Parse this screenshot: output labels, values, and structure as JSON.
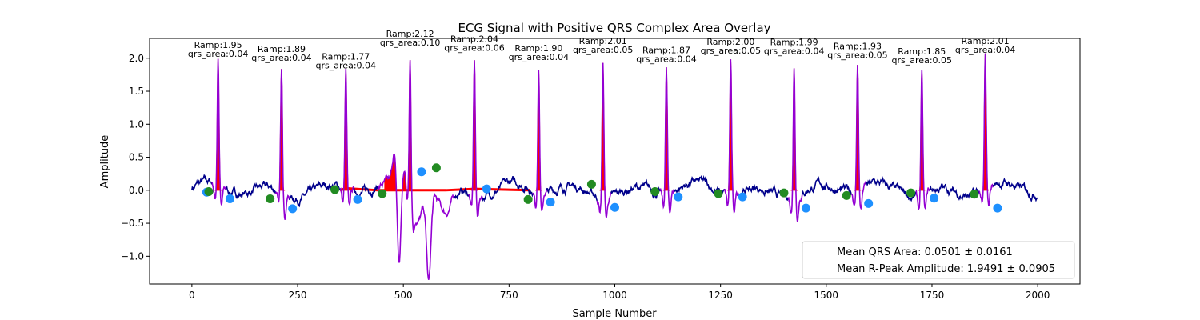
{
  "chart_data": {
    "type": "line",
    "title": "ECG Signal with Positive QRS Complex Area Overlay",
    "xlabel": "Sample Number",
    "ylabel": "Amplitude",
    "xlim": [
      -100,
      2100
    ],
    "ylim": [
      -1.42,
      2.3
    ],
    "x_ticks": [
      0,
      250,
      500,
      750,
      1000,
      1250,
      1500,
      1750,
      2000
    ],
    "y_ticks": [
      -1.0,
      -0.5,
      0.0,
      0.5,
      1.0,
      1.5,
      2.0
    ],
    "grid": false,
    "colors": {
      "signal": "#00008b",
      "qrs_segment": "#9400d3",
      "qrs_area": "#ff0000",
      "q_s_points": "#1e90ff",
      "t_points": "#228b22"
    },
    "r_peaks": [
      {
        "x": 62,
        "amp": 1.95,
        "qrs_area": 0.04
      },
      {
        "x": 212,
        "amp": 1.89,
        "qrs_area": 0.04
      },
      {
        "x": 364,
        "amp": 1.77,
        "qrs_area": 0.04
      },
      {
        "x": 516,
        "amp": 2.12,
        "qrs_area": 0.1
      },
      {
        "x": 668,
        "amp": 2.04,
        "qrs_area": 0.06
      },
      {
        "x": 820,
        "amp": 1.9,
        "qrs_area": 0.04
      },
      {
        "x": 972,
        "amp": 2.01,
        "qrs_area": 0.05
      },
      {
        "x": 1122,
        "amp": 1.87,
        "qrs_area": 0.04
      },
      {
        "x": 1274,
        "amp": 2.0,
        "qrs_area": 0.05
      },
      {
        "x": 1424,
        "amp": 1.99,
        "qrs_area": 0.04
      },
      {
        "x": 1574,
        "amp": 1.93,
        "qrs_area": 0.05
      },
      {
        "x": 1726,
        "amp": 1.85,
        "qrs_area": 0.05
      },
      {
        "x": 1876,
        "amp": 2.01,
        "qrs_area": 0.04
      }
    ],
    "annotations": [
      {
        "ramp": "Ramp:1.95",
        "area": "qrs_area:0.04"
      },
      {
        "ramp": "Ramp:1.89",
        "area": "qrs_area:0.04"
      },
      {
        "ramp": "Ramp:1.77",
        "area": "qrs_area:0.04"
      },
      {
        "ramp": "Ramp:2.12",
        "area": "qrs_area:0.10"
      },
      {
        "ramp": "Ramp:2.04",
        "area": "qrs_area:0.06"
      },
      {
        "ramp": "Ramp:1.90",
        "area": "qrs_area:0.04"
      },
      {
        "ramp": "Ramp:2.01",
        "area": "qrs_area:0.05"
      },
      {
        "ramp": "Ramp:1.87",
        "area": "qrs_area:0.04"
      },
      {
        "ramp": "Ramp:2.00",
        "area": "qrs_area:0.05"
      },
      {
        "ramp": "Ramp:1.99",
        "area": "qrs_area:0.04"
      },
      {
        "ramp": "Ramp:1.93",
        "area": "qrs_area:0.05"
      },
      {
        "ramp": "Ramp:1.85",
        "area": "qrs_area:0.05"
      },
      {
        "ramp": "Ramp:2.01",
        "area": "qrs_area:0.04"
      }
    ],
    "q_s_points": [
      {
        "x": 35,
        "y": -0.03
      },
      {
        "x": 90,
        "y": -0.13
      },
      {
        "x": 238,
        "y": -0.28
      },
      {
        "x": 392,
        "y": -0.14
      },
      {
        "x": 543,
        "y": 0.28
      },
      {
        "x": 697,
        "y": 0.02
      },
      {
        "x": 848,
        "y": -0.18
      },
      {
        "x": 1000,
        "y": -0.26
      },
      {
        "x": 1150,
        "y": -0.1
      },
      {
        "x": 1302,
        "y": -0.1
      },
      {
        "x": 1452,
        "y": -0.27
      },
      {
        "x": 1600,
        "y": -0.2
      },
      {
        "x": 1755,
        "y": -0.12
      },
      {
        "x": 1905,
        "y": -0.27
      }
    ],
    "t_points": [
      {
        "x": 40,
        "y": -0.02
      },
      {
        "x": 185,
        "y": -0.13
      },
      {
        "x": 338,
        "y": 0.01
      },
      {
        "x": 450,
        "y": -0.05
      },
      {
        "x": 578,
        "y": 0.34
      },
      {
        "x": 795,
        "y": -0.14
      },
      {
        "x": 945,
        "y": 0.09
      },
      {
        "x": 1095,
        "y": -0.02
      },
      {
        "x": 1245,
        "y": -0.05
      },
      {
        "x": 1400,
        "y": -0.04
      },
      {
        "x": 1548,
        "y": -0.08
      },
      {
        "x": 1700,
        "y": -0.04
      },
      {
        "x": 1850,
        "y": -0.06
      }
    ],
    "legend": {
      "location": "lower-right",
      "entries": [
        "Mean QRS Area: 0.0501 ± 0.0161",
        "Mean R-Peak Amplitude: 1.9491 ± 0.0905"
      ]
    }
  }
}
